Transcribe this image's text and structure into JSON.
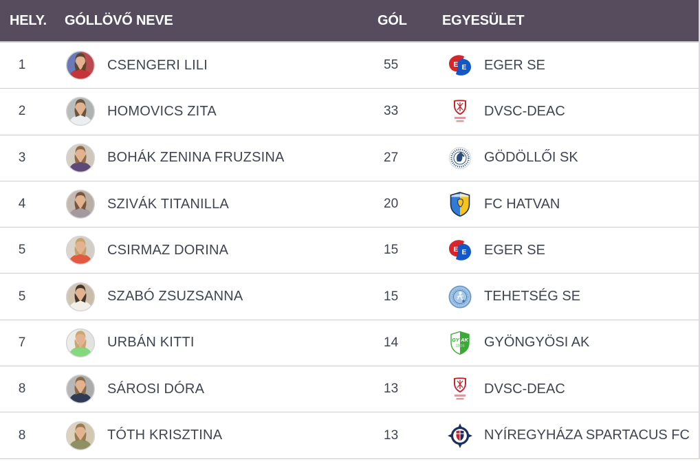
{
  "table": {
    "header": {
      "rank": "HELY.",
      "player": "GÓLLÖVŐ NEVE",
      "goals": "GÓL",
      "club": "EGYESÜLET"
    },
    "rows": [
      {
        "rank": "1",
        "player": "CSENGERI LILI",
        "goals": "55",
        "club": "EGER SE",
        "club_logo": "eger-se",
        "avatar": {
          "bg1": "#6c79b8",
          "bg2": "#bb4a50",
          "shirt": "#c5333b",
          "hair": "#5f452e"
        }
      },
      {
        "rank": "2",
        "player": "HOMOVICS ZITA",
        "goals": "33",
        "club": "DVSC-DEAC",
        "club_logo": "dvsc-deac",
        "avatar": {
          "bg1": "#b9bdbb",
          "bg2": "#aeb2b0",
          "shirt": "#eceff1",
          "hair": "#6b533c"
        }
      },
      {
        "rank": "3",
        "player": "BOHÁK ZENINA FRUZSINA",
        "goals": "27",
        "club": "GÖDÖLLŐI SK",
        "club_logo": "godolloi-sk",
        "avatar": {
          "bg1": "#d6cfc4",
          "bg2": "#cfc7ba",
          "shirt": "#5d4a79",
          "hair": "#8c6a48"
        }
      },
      {
        "rank": "4",
        "player": "SZIVÁK TITANILLA",
        "goals": "20",
        "club": "FC HATVAN",
        "club_logo": "fc-hatvan",
        "avatar": {
          "bg1": "#c4bab2",
          "bg2": "#b8aea6",
          "shirt": "#a39aa0",
          "hair": "#77573b"
        }
      },
      {
        "rank": "5",
        "player": "CSIRMAZ DORINA",
        "goals": "15",
        "club": "EGER SE",
        "club_logo": "eger-se",
        "avatar": {
          "bg1": "#dbd7cf",
          "bg2": "#d2cec6",
          "shirt": "#e25a41",
          "hair": "#c7a169"
        }
      },
      {
        "rank": "5",
        "player": "SZABÓ ZSUZSANNA",
        "goals": "15",
        "club": "TEHETSÉG SE",
        "club_logo": "tehetseg-se",
        "avatar": {
          "bg1": "#d2c6b2",
          "bg2": "#c9bca8",
          "shirt": "#f1efe8",
          "hair": "#473627"
        }
      },
      {
        "rank": "7",
        "player": "URBÁN KITTI",
        "goals": "14",
        "club": "GYÖNGYÖSI AK",
        "club_logo": "gyongyosi-ak",
        "avatar": {
          "bg1": "#ececea",
          "bg2": "#e2e2e0",
          "shirt": "#82d97e",
          "hair": "#c9a86c"
        }
      },
      {
        "rank": "8",
        "player": "SÁROSI DÓRA",
        "goals": "13",
        "club": "DVSC-DEAC",
        "club_logo": "dvsc-deac",
        "avatar": {
          "bg1": "#b7b7b7",
          "bg2": "#ababab",
          "shirt": "#2f3a55",
          "hair": "#8a6a45"
        }
      },
      {
        "rank": "8",
        "player": "TÓTH KRISZTINA",
        "goals": "13",
        "club": "NYÍREGYHÁZA SPARTACUS FC",
        "club_logo": "nyiregyhaza-spartacus-fc",
        "avatar": {
          "bg1": "#dcd2bd",
          "bg2": "#d2c8b2",
          "shirt": "#8f9063",
          "hair": "#9a7a50"
        }
      }
    ]
  },
  "logos": {
    "eger-se": {
      "red": "#d6262b",
      "blue": "#1458c8",
      "letter": "#ffffff"
    },
    "dvsc-deac": {
      "red": "#c1272d",
      "light": "#dc9aa0"
    },
    "godolloi-sk": {
      "blue": "#2a4d7a",
      "bg": "#ffffff"
    },
    "fc-hatvan": {
      "blue": "#2f7bd6",
      "yellow": "#f6c41e",
      "outline": "#1d2d50"
    },
    "tehetseg-se": {
      "light": "#a8c8e8",
      "mid": "#6f9cc9",
      "dark": "#3d6ea5"
    },
    "gyongyosi-ak": {
      "green": "#3aa935",
      "white": "#ffffff",
      "lightgreen": "#8fce8c"
    },
    "nyiregyhaza-spartacus-fc": {
      "navy": "#1b2f5e",
      "red": "#c1272d",
      "white": "#ffffff"
    }
  },
  "colors": {
    "header_bg": "#574b5e",
    "header_text": "#ffffff",
    "row_text": "#3e4551",
    "separator": "#cbcbcb",
    "avatar_ring": "#d4d4d4"
  }
}
